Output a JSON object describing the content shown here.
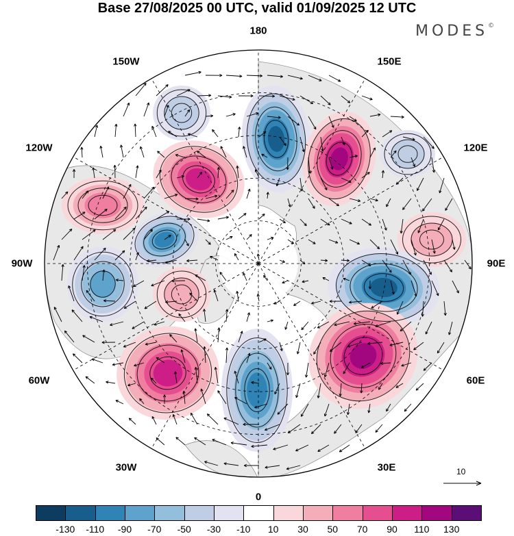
{
  "title": "Base 27/08/2025 00 UTC, valid 01/09/2025 12 UTC",
  "brand": "MODES",
  "brand_mark": "©",
  "grid_labels": {
    "top": "180",
    "bottom": "0",
    "left": "90W",
    "right": "90E",
    "nw1": "150W",
    "nw2": "120W",
    "ne1": "150E",
    "ne2": "120E",
    "sw1": "60W",
    "sw2": "30W",
    "se1": "60E",
    "se2": "30E"
  },
  "vector_legend": "10",
  "colorbar": {
    "colors": [
      "#0d3c61",
      "#185e8d",
      "#2f83b5",
      "#5ea3cc",
      "#93bedc",
      "#c0cee5",
      "#e2e2f0",
      "#ffffff",
      "#f9d7da",
      "#f4aeb9",
      "#ef7ea0",
      "#e64f8f",
      "#cd1e88",
      "#a3077f",
      "#5a0e76"
    ],
    "ticks": [
      "-130",
      "-110",
      "-90",
      "-70",
      "-50",
      "-30",
      "-10",
      "10",
      "30",
      "50",
      "70",
      "90",
      "110",
      "130"
    ]
  },
  "anomalies": [
    {
      "label": "low-150E-N",
      "value": -110
    },
    {
      "label": "high-150E",
      "value": 110
    },
    {
      "label": "high-150W-120W",
      "value": 100
    },
    {
      "label": "low-100W",
      "value": -90
    },
    {
      "label": "low-90W",
      "value": -70
    },
    {
      "label": "high-110W",
      "value": 50
    },
    {
      "label": "low-120E",
      "value": -30
    },
    {
      "label": "high-100E",
      "value": 30
    },
    {
      "label": "low-80E",
      "value": -110
    },
    {
      "label": "high-40E",
      "value": 110
    },
    {
      "label": "low-0",
      "value": -90
    },
    {
      "label": "high-40W",
      "value": 90
    },
    {
      "label": "high-70W",
      "value": 30
    },
    {
      "label": "low-160W",
      "value": -30
    }
  ]
}
